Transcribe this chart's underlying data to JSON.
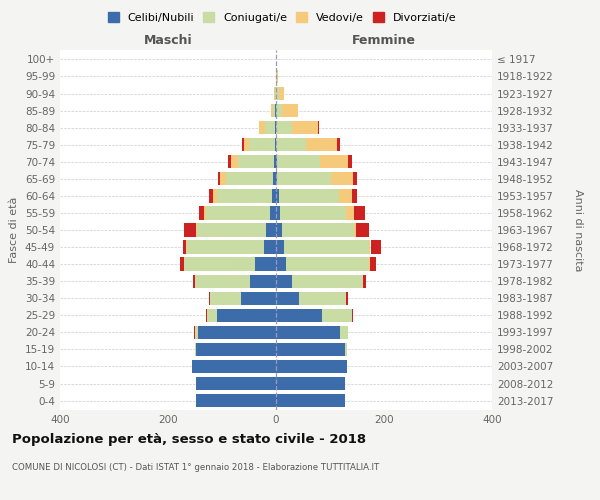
{
  "age_groups": [
    "0-4",
    "5-9",
    "10-14",
    "15-19",
    "20-24",
    "25-29",
    "30-34",
    "35-39",
    "40-44",
    "45-49",
    "50-54",
    "55-59",
    "60-64",
    "65-69",
    "70-74",
    "75-79",
    "80-84",
    "85-89",
    "90-94",
    "95-99",
    "100+"
  ],
  "birth_years": [
    "2013-2017",
    "2008-2012",
    "2003-2007",
    "1998-2002",
    "1993-1997",
    "1988-1992",
    "1983-1987",
    "1978-1982",
    "1973-1977",
    "1968-1972",
    "1963-1967",
    "1958-1962",
    "1953-1957",
    "1948-1952",
    "1943-1947",
    "1938-1942",
    "1933-1937",
    "1928-1932",
    "1923-1927",
    "1918-1922",
    "≤ 1917"
  ],
  "maschi_celibi": [
    148,
    148,
    155,
    148,
    145,
    110,
    65,
    48,
    38,
    22,
    18,
    12,
    8,
    5,
    3,
    2,
    1,
    1,
    0,
    0,
    0
  ],
  "maschi_coniugati": [
    0,
    0,
    0,
    2,
    5,
    18,
    58,
    102,
    132,
    143,
    128,
    118,
    102,
    88,
    68,
    48,
    20,
    5,
    2,
    0,
    0
  ],
  "maschi_vedovi": [
    0,
    0,
    0,
    0,
    0,
    0,
    0,
    0,
    0,
    1,
    2,
    3,
    6,
    10,
    12,
    10,
    10,
    4,
    1,
    0,
    0
  ],
  "maschi_divorziati": [
    0,
    0,
    0,
    0,
    1,
    1,
    2,
    3,
    8,
    6,
    22,
    9,
    9,
    5,
    5,
    3,
    1,
    0,
    0,
    0,
    0
  ],
  "femmine_nubili": [
    128,
    128,
    132,
    128,
    118,
    85,
    42,
    30,
    18,
    15,
    12,
    8,
    5,
    2,
    1,
    0,
    0,
    0,
    0,
    0,
    0
  ],
  "femmine_coniugate": [
    0,
    0,
    0,
    3,
    15,
    55,
    88,
    132,
    155,
    158,
    132,
    122,
    112,
    100,
    80,
    55,
    30,
    12,
    5,
    2,
    0
  ],
  "femmine_vedove": [
    0,
    0,
    0,
    0,
    0,
    0,
    0,
    0,
    1,
    2,
    5,
    14,
    24,
    40,
    52,
    58,
    48,
    28,
    10,
    2,
    0
  ],
  "femmine_divorziate": [
    0,
    0,
    0,
    0,
    1,
    2,
    3,
    5,
    12,
    20,
    24,
    20,
    9,
    8,
    8,
    5,
    2,
    1,
    0,
    0,
    0
  ],
  "color_celibi": "#3c6daa",
  "color_coniugati": "#c8dca4",
  "color_vedovi": "#f5ca7a",
  "color_divorziati": "#cc2222",
  "xlim": 400,
  "title": "Popolazione per età, sesso e stato civile - 2018",
  "subtitle": "COMUNE DI NICOLOSI (CT) - Dati ISTAT 1° gennaio 2018 - Elaborazione TUTTITALIA.IT",
  "ylabel_left": "Fasce di età",
  "ylabel_right": "Anni di nascita",
  "label_maschi": "Maschi",
  "label_femmine": "Femmine",
  "legend_labels": [
    "Celibi/Nubili",
    "Coniugati/e",
    "Vedovi/e",
    "Divorziati/e"
  ],
  "bg_color": "#f4f4f2",
  "plot_bg": "#ffffff"
}
